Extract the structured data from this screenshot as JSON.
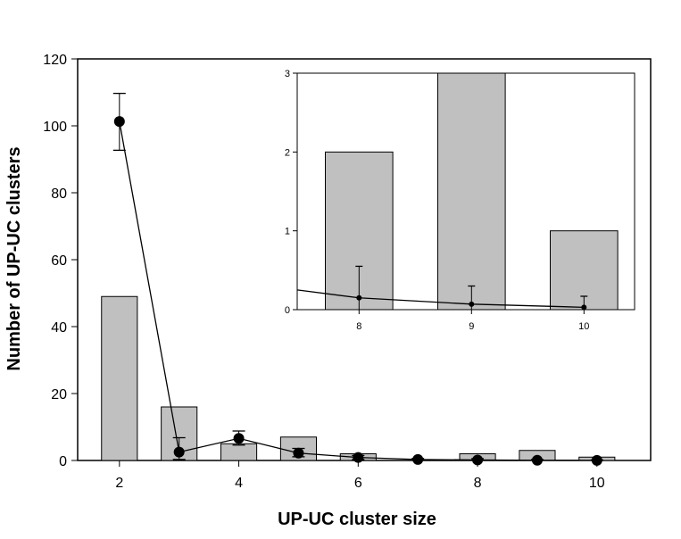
{
  "colors": {
    "bar_fill": "#c0c0c0",
    "bar_stroke": "#000000",
    "line": "#000000",
    "marker": "#000000"
  },
  "chart_data": [
    {
      "type": "bar",
      "role": "main",
      "xlabel": "UP-UC cluster size",
      "ylabel": "Number of UP-UC clusters",
      "xlim": [
        1.3,
        10.9
      ],
      "ylim": [
        0,
        120
      ],
      "x_ticks": [
        2,
        4,
        6,
        8,
        10
      ],
      "y_ticks": [
        0,
        20,
        40,
        60,
        80,
        100,
        120
      ],
      "grid": false,
      "categories": [
        2,
        3,
        4,
        5,
        6,
        7,
        8,
        9,
        10
      ],
      "series": [
        {
          "kind": "bar",
          "values": [
            49,
            16,
            5,
            7,
            2,
            0,
            2,
            3,
            1
          ]
        },
        {
          "kind": "line",
          "values": [
            101.3,
            2.5,
            6.6,
            2.2,
            0.9,
            0.3,
            0.15,
            0.07,
            0.03
          ],
          "error_low": [
            92.7,
            0.3,
            4.6,
            1.1,
            0.3,
            0.0,
            0.0,
            0.0,
            0.0
          ],
          "error_high": [
            109.7,
            6.8,
            8.8,
            3.6,
            1.5,
            0.6,
            0.55,
            0.3,
            0.17
          ]
        }
      ]
    },
    {
      "type": "bar",
      "role": "inset",
      "xlim": [
        7.45,
        10.45
      ],
      "ylim": [
        0,
        3
      ],
      "x_ticks": [
        8,
        9,
        10
      ],
      "y_ticks": [
        0,
        1,
        2,
        3
      ],
      "grid": false,
      "categories": [
        8,
        9,
        10
      ],
      "series": [
        {
          "kind": "bar",
          "values": [
            2,
            3,
            1
          ]
        },
        {
          "kind": "line",
          "values": [
            0.15,
            0.07,
            0.03
          ],
          "error_low": [
            0.0,
            0.0,
            0.0
          ],
          "error_high": [
            0.55,
            0.3,
            0.17
          ],
          "line_start": {
            "x": 7.45,
            "y": 0.25
          }
        }
      ]
    }
  ]
}
